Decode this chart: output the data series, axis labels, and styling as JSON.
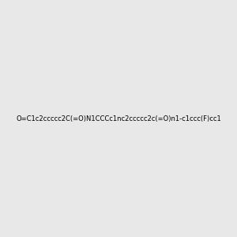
{
  "smiles": "O=C1c2ccccc2C(=O)N1CCCc1nc2ccccc2c(=O)n1-c1ccc(F)cc1",
  "title": "",
  "bg_color": "#e8e8e8",
  "img_size": [
    300,
    300
  ]
}
